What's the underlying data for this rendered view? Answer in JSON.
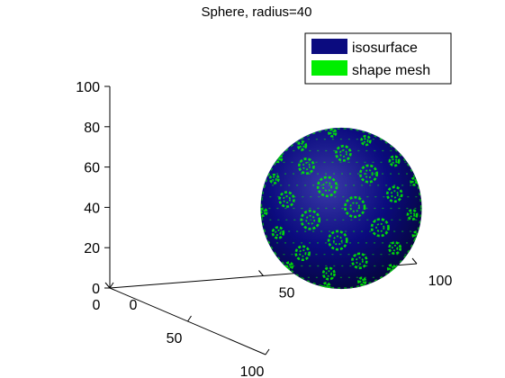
{
  "chart_data": {
    "type": "surface3d",
    "title": "Sphere, radius=40",
    "xlabel": "",
    "ylabel": "",
    "zlabel": "",
    "legend": {
      "placement": "top-right",
      "entries": [
        {
          "label": "isosurface",
          "color": "#0b0b7f"
        },
        {
          "label": "shape mesh",
          "color": "#00ee00"
        }
      ]
    },
    "axes": {
      "x": {
        "range": [
          0,
          100
        ],
        "ticks": [
          "0",
          "50",
          "100"
        ]
      },
      "y": {
        "range": [
          0,
          100
        ],
        "ticks": [
          "0",
          "50",
          "100"
        ]
      },
      "z": {
        "range": [
          0,
          100
        ],
        "ticks": [
          "0",
          "20",
          "40",
          "60",
          "80",
          "100"
        ]
      }
    },
    "sphere": {
      "radius": 40,
      "center": [
        50,
        50,
        50
      ]
    },
    "grid": false
  },
  "colors": {
    "isosurface": "#0b0b7f",
    "isosurface_highlight": "#3a3aa8",
    "isosurface_shadow": "#05053a",
    "mesh": "#00ee00",
    "axis": "#000000"
  }
}
